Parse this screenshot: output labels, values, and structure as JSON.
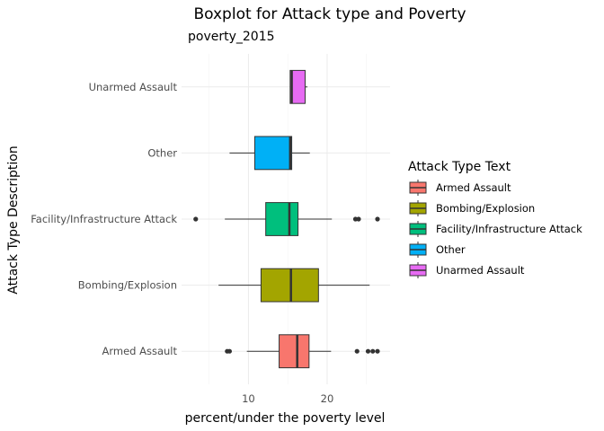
{
  "chart_data": {
    "type": "boxplot",
    "title": "Boxplot  for Attack type and Poverty",
    "subtitle": "poverty_2015",
    "xlabel": "percent/under the poverty level",
    "ylabel": "Attack Type Description",
    "xlim": [
      1.5,
      28
    ],
    "x_ticks": [
      10,
      20
    ],
    "grid": true,
    "legend": {
      "title": "Attack Type Text",
      "placement": "right"
    },
    "categories": [
      "Armed Assault",
      "Bombing/Explosion",
      "Facility/Infrastructure Attack",
      "Other",
      "Unarmed Assault"
    ],
    "colors": {
      "Armed Assault": "#F8766D",
      "Bombing/Explosion": "#A3A500",
      "Facility/Infrastructure Attack": "#00BF7D",
      "Other": "#00B0F6",
      "Unarmed Assault": "#E76BF3"
    },
    "series": [
      {
        "name": "Armed Assault",
        "whisker_low": 9.8,
        "q1": 13.9,
        "median": 16.2,
        "q3": 17.7,
        "whisker_high": 20.5,
        "outliers": [
          7.3,
          7.6,
          23.8,
          25.2,
          25.8,
          26.4
        ]
      },
      {
        "name": "Bombing/Explosion",
        "whisker_low": 6.2,
        "q1": 11.6,
        "median": 15.4,
        "q3": 18.9,
        "whisker_high": 25.4,
        "outliers": []
      },
      {
        "name": "Facility/Infrastructure Attack",
        "whisker_low": 7.0,
        "q1": 12.2,
        "median": 15.2,
        "q3": 16.3,
        "whisker_high": 20.6,
        "outliers": [
          3.3,
          23.6,
          24.0,
          26.4
        ]
      },
      {
        "name": "Other",
        "whisker_low": 7.6,
        "q1": 10.8,
        "median": 15.3,
        "q3": 15.5,
        "whisker_high": 17.8,
        "outliers": []
      },
      {
        "name": "Unarmed Assault",
        "whisker_low": 15.3,
        "q1": 15.3,
        "median": 15.5,
        "q3": 17.2,
        "whisker_high": 17.5,
        "outliers": []
      }
    ]
  }
}
